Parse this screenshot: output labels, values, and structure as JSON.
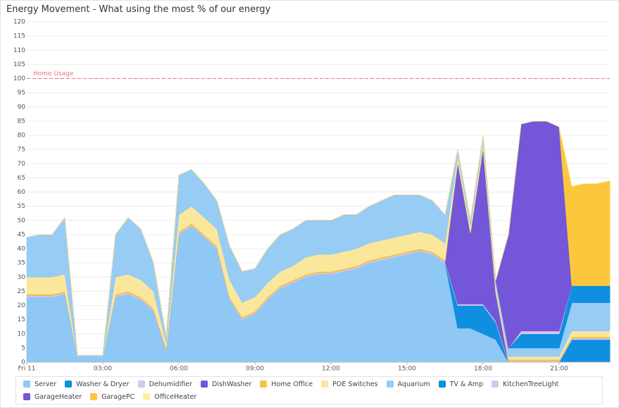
{
  "chart_data": {
    "type": "stacked_area",
    "title": "Energy Movement - What using the most % of our energy",
    "x": [
      0,
      0.5,
      1,
      1.5,
      2,
      2.5,
      3,
      3.5,
      4,
      4.5,
      5,
      5.5,
      6,
      6.5,
      7,
      7.5,
      8,
      8.5,
      9,
      9.5,
      10,
      10.5,
      11,
      11.5,
      12,
      12.5,
      13,
      13.5,
      14,
      14.5,
      15,
      15.5,
      16,
      16.5,
      17,
      17.5,
      18,
      18.5,
      19,
      19.5,
      20,
      20.5,
      21,
      21.5,
      22,
      22.5,
      23
    ],
    "xlim": [
      0,
      23
    ],
    "xticks": [
      {
        "value": 0,
        "label": "Fri 11"
      },
      {
        "value": 3,
        "label": "03:00"
      },
      {
        "value": 6,
        "label": "06:00"
      },
      {
        "value": 9,
        "label": "09:00"
      },
      {
        "value": 12,
        "label": "12:00"
      },
      {
        "value": 15,
        "label": "15:00"
      },
      {
        "value": 18,
        "label": "18:00"
      },
      {
        "value": 21,
        "label": "21:00"
      }
    ],
    "ylim": [
      0,
      120
    ],
    "yticks": [
      0,
      5,
      10,
      15,
      20,
      25,
      30,
      35,
      40,
      45,
      50,
      55,
      60,
      65,
      70,
      75,
      80,
      85,
      90,
      95,
      100,
      105,
      110,
      115,
      120
    ],
    "grid": true,
    "annotations": [
      {
        "text": "Home Usage",
        "value": 100,
        "color": "#e8737f"
      }
    ],
    "series": [
      {
        "name": "Server",
        "color": "#8fc8f4",
        "values": [
          23,
          23,
          23,
          24,
          2,
          2,
          2,
          23,
          24,
          22,
          18,
          4,
          45,
          48,
          44,
          40,
          22,
          15,
          17,
          22,
          26,
          28,
          30,
          31,
          31,
          32,
          33,
          35,
          36,
          37,
          38,
          39,
          38,
          35,
          12,
          12,
          10,
          8,
          0,
          0,
          0,
          0,
          0,
          0,
          0,
          0,
          0
        ]
      },
      {
        "name": "Washer & Dryer",
        "color": "#0f8fdf",
        "values": [
          0,
          0,
          0,
          0,
          0,
          0,
          0,
          0,
          0,
          0,
          0,
          0,
          0,
          0,
          0,
          0,
          0,
          0,
          0,
          0,
          0,
          0,
          0,
          0,
          0,
          0,
          0,
          0,
          0,
          0,
          0,
          0,
          0,
          0,
          8,
          8,
          10,
          6,
          0,
          0,
          0,
          0,
          0,
          8,
          8,
          8,
          8
        ]
      },
      {
        "name": "Dehumidifier",
        "color": "#d6c6f2",
        "values": [
          0.5,
          0.5,
          0.5,
          0.5,
          0,
          0,
          0,
          0.5,
          0.5,
          0.5,
          0.5,
          0.5,
          0.5,
          0.5,
          0.5,
          0.5,
          0.5,
          0.5,
          0.5,
          0.5,
          0.5,
          0.5,
          0.5,
          0.5,
          0.5,
          0.5,
          0.5,
          0.5,
          0.5,
          0.5,
          0.5,
          0.5,
          0.5,
          0.5,
          0.5,
          0.5,
          0.5,
          0.5,
          0.5,
          0.5,
          0.5,
          0.5,
          0.5,
          0.5,
          0.5,
          0.5,
          0.5
        ]
      },
      {
        "name": "DishWasher",
        "color": "#7357d8",
        "values": [
          0,
          0,
          0,
          0,
          0,
          0,
          0,
          0,
          0,
          0,
          0,
          0,
          0,
          0,
          0,
          0,
          0,
          0,
          0,
          0,
          0,
          0,
          0,
          0,
          0,
          0,
          0,
          0,
          0,
          0,
          0,
          0,
          0,
          0,
          50,
          25,
          55,
          10,
          0,
          0,
          0,
          0,
          0,
          0,
          0,
          0,
          0
        ]
      },
      {
        "name": "Home Office",
        "color": "#f6c443",
        "values": [
          0.5,
          0.5,
          0.5,
          0.5,
          0,
          0,
          0,
          0.5,
          0.5,
          0.5,
          0.5,
          0.5,
          0.5,
          0.5,
          0.5,
          0.5,
          0.5,
          0.5,
          0.5,
          0.5,
          0.5,
          0.5,
          0.5,
          0.5,
          0.5,
          0.5,
          0.5,
          0.5,
          0.5,
          0.5,
          0.5,
          0.5,
          0.5,
          0.5,
          0.5,
          0.5,
          0.5,
          0.5,
          0.5,
          0.5,
          0.5,
          0.5,
          0.5,
          0.5,
          0.5,
          0.5,
          0.5
        ]
      },
      {
        "name": "POE Switches",
        "color": "#fbe79c",
        "values": [
          6,
          6,
          6,
          6,
          0,
          0,
          0,
          6,
          6,
          6,
          6,
          2,
          6,
          6,
          6,
          6,
          6,
          5,
          5,
          5,
          5,
          5,
          6,
          6,
          6,
          6,
          6,
          6,
          6,
          6,
          6,
          6,
          6,
          6,
          2,
          2,
          2,
          2,
          1,
          1,
          1,
          1,
          1,
          2,
          2,
          2,
          2
        ]
      },
      {
        "name": "Aquarium",
        "color": "#97ccf5",
        "values": [
          14,
          15,
          15,
          20,
          0.5,
          0.5,
          0.5,
          15,
          20,
          18,
          10,
          2,
          14,
          13,
          12,
          10,
          12,
          11,
          10,
          12,
          13,
          13,
          13,
          12,
          12,
          13,
          12,
          13,
          14,
          15,
          14,
          13,
          12,
          10,
          2,
          2,
          2,
          2,
          3,
          3,
          3,
          3,
          3,
          10,
          10,
          10,
          10
        ]
      },
      {
        "name": "TV & Amp",
        "color": "#0f8fdf",
        "values": [
          0,
          0,
          0,
          0,
          0,
          0,
          0,
          0,
          0,
          0,
          0,
          0,
          0,
          0,
          0,
          0,
          0,
          0,
          0,
          0,
          0,
          0,
          0,
          0,
          0,
          0,
          0,
          0,
          0,
          0,
          0,
          0,
          0,
          0,
          0,
          0,
          0,
          0,
          0,
          5,
          5,
          5,
          5,
          6,
          6,
          6,
          6
        ]
      },
      {
        "name": "KitchenTreeLight",
        "color": "#d6c6f2",
        "values": [
          0,
          0,
          0,
          0,
          0,
          0,
          0,
          0,
          0,
          0,
          0,
          0,
          0,
          0,
          0,
          0,
          0,
          0,
          0,
          0,
          0,
          0,
          0,
          0,
          0,
          0,
          0,
          0,
          0,
          0,
          0,
          0,
          0,
          0,
          0,
          0,
          0,
          0,
          0,
          1,
          1,
          1,
          1,
          0,
          0,
          0,
          0
        ]
      },
      {
        "name": "GarageHeater",
        "color": "#7357d8",
        "values": [
          0,
          0,
          0,
          0,
          0,
          0,
          0,
          0,
          0,
          0,
          0,
          0,
          0,
          0,
          0,
          0,
          0,
          0,
          0,
          0,
          0,
          0,
          0,
          0,
          0,
          0,
          0,
          0,
          0,
          0,
          0,
          0,
          0,
          0,
          0,
          0,
          0,
          0,
          40,
          73,
          74,
          74,
          72,
          0,
          0,
          0,
          0
        ]
      },
      {
        "name": "GaragePC",
        "color": "#fcc73c",
        "values": [
          0,
          0,
          0,
          0,
          0,
          0,
          0,
          0,
          0,
          0,
          0,
          0,
          0,
          0,
          0,
          0,
          0,
          0,
          0,
          0,
          0,
          0,
          0,
          0,
          0,
          0,
          0,
          0,
          0,
          0,
          0,
          0,
          0,
          0,
          0,
          0,
          0,
          0,
          0,
          0,
          0,
          0,
          0,
          35,
          36,
          36,
          37
        ]
      },
      {
        "name": "OfficeHeater",
        "color": "#fdeea6",
        "values": [
          0,
          0,
          0,
          0,
          0,
          0,
          0,
          0,
          0,
          0,
          0,
          0,
          0,
          0,
          0,
          0,
          0,
          0,
          0,
          0,
          0,
          0,
          0,
          0,
          0,
          0,
          0,
          0,
          0,
          0,
          0,
          0,
          0,
          0,
          0,
          0,
          0,
          0,
          0,
          0,
          0,
          0,
          0,
          0,
          0,
          0,
          0
        ]
      }
    ]
  }
}
